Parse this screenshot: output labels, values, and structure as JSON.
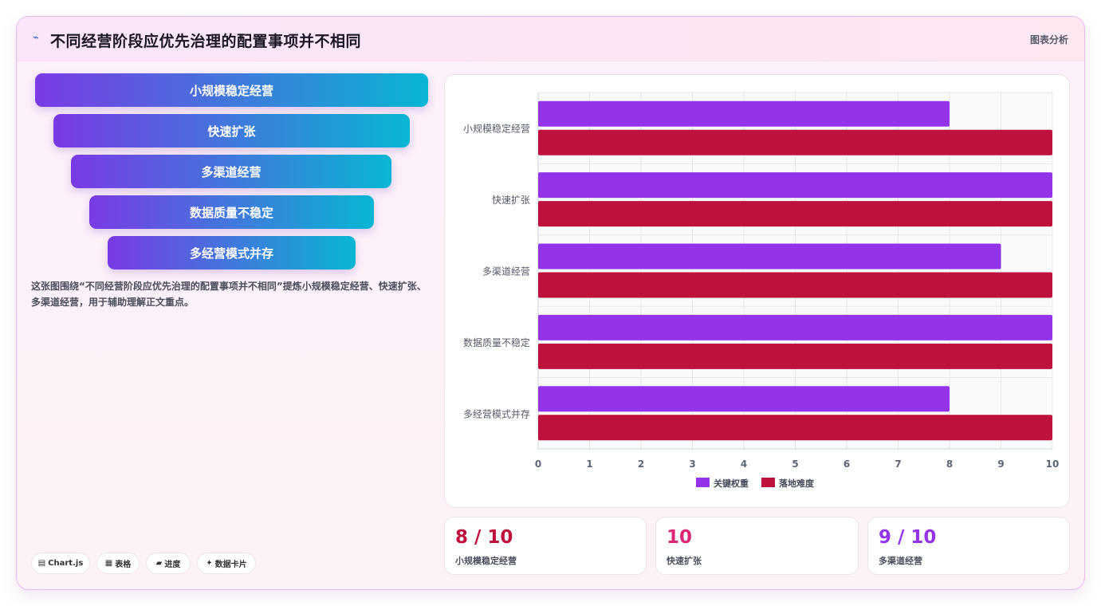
{
  "header": {
    "title": "不同经营阶段应优先治理的配置事项并不相同",
    "tag": "图表分析"
  },
  "funnel": [
    "小规模稳定经营",
    "快速扩张",
    "多渠道经营",
    "数据质量不稳定",
    "多经营模式并存"
  ],
  "description": "这张图围绕“不同经营阶段应优先治理的配置事项并不相同”提炼小规模稳定经营、快速扩张、多渠道经营，用于辅助理解正文重点。",
  "chips": [
    {
      "icon": "chart-icon",
      "glyph": "▤",
      "label": "Chart.js"
    },
    {
      "icon": "table-icon",
      "glyph": "▦",
      "label": "表格"
    },
    {
      "icon": "progress-icon",
      "glyph": "▰",
      "label": "进度"
    },
    {
      "icon": "sparkle-icon",
      "glyph": "✦",
      "label": "数据卡片"
    }
  ],
  "chart_data": {
    "type": "bar",
    "orientation": "horizontal",
    "categories": [
      "小规模稳定经营",
      "快速扩张",
      "多渠道经营",
      "数据质量不稳定",
      "多经营模式并存"
    ],
    "series": [
      {
        "name": "关键权重",
        "color": "#9333ea",
        "values": [
          8,
          10,
          9,
          10,
          8
        ]
      },
      {
        "name": "落地难度",
        "color": "#be123c",
        "values": [
          10,
          10,
          10,
          10,
          10
        ]
      }
    ],
    "xlim": [
      0,
      10
    ],
    "xticks": [
      "0",
      "1",
      "2",
      "3",
      "4",
      "5",
      "6",
      "7",
      "8",
      "9",
      "10"
    ],
    "grid": true,
    "legend": "bottom"
  },
  "stats": [
    {
      "value": "8 / 10",
      "label": "小规模稳定经营",
      "color": "#be123c"
    },
    {
      "value": "10",
      "label": "快速扩张",
      "color": "#db2777"
    },
    {
      "value": "9 / 10",
      "label": "多渠道经营",
      "color": "#9333ea"
    }
  ]
}
